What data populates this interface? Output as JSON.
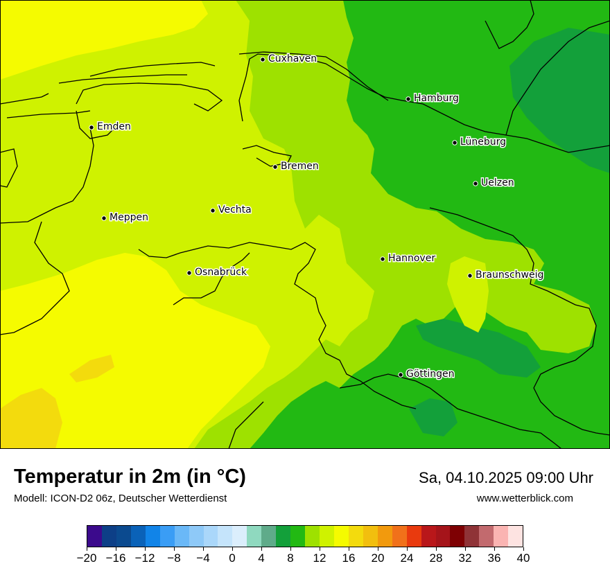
{
  "title": "Temperatur in 2m (in °C)",
  "subtitle": "Modell: ICON-D2 06z, Deutscher Wetterdienst",
  "datetime": "Sa, 04.10.2025 09:00 Uhr",
  "website": "www.wetterblick.com",
  "cities": [
    {
      "name": "Cuxhaven"
    },
    {
      "name": "Hamburg"
    },
    {
      "name": "Emden"
    },
    {
      "name": "Lüneburg"
    },
    {
      "name": "Bremen"
    },
    {
      "name": "Uelzen"
    },
    {
      "name": "Vechta"
    },
    {
      "name": "Meppen"
    },
    {
      "name": "Hannover"
    },
    {
      "name": "Osnabrück"
    },
    {
      "name": "Braunschweig"
    },
    {
      "name": "Göttingen"
    }
  ],
  "colorbar": {
    "unit": "°C",
    "min": -20,
    "max": 40,
    "step": 2,
    "colors": [
      "#3b0a8c",
      "#0d3f87",
      "#0b4a8f",
      "#0a62b8",
      "#1184e8",
      "#3a9df5",
      "#6ab8f7",
      "#8ec9f8",
      "#aad7fa",
      "#c5e4fb",
      "#dbeefc",
      "#8fd9bf",
      "#5fab8a",
      "#13a03a",
      "#22b913",
      "#9ee100",
      "#cff200",
      "#f5fb00",
      "#f3db0d",
      "#f2bf0e",
      "#f29a0d",
      "#f1711a",
      "#e93a0e",
      "#b9171a",
      "#a5141a",
      "#7e0003",
      "#8f3337",
      "#c26a6e",
      "#fab4b2",
      "#fde3e1"
    ],
    "tick_labels": [
      "−20",
      "−16",
      "−12",
      "−8",
      "−4",
      "0",
      "4",
      "8",
      "12",
      "16",
      "20",
      "24",
      "28",
      "32",
      "36",
      "40"
    ]
  }
}
